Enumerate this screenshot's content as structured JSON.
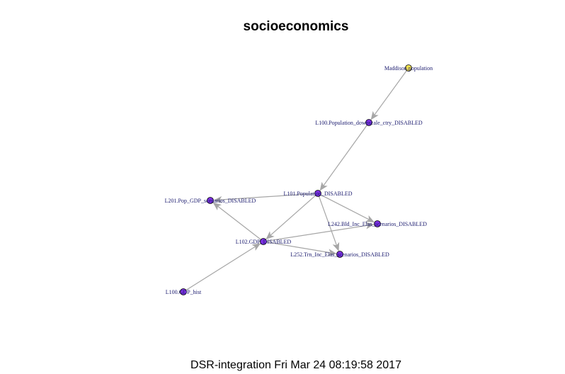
{
  "title": "socioeconomics",
  "footer": "DSR-integration Fri Mar 24 08:19:58 2017",
  "colors": {
    "edge": "#a6a6a6",
    "node_default": "#7b2fe0",
    "node_source": "#f0e050",
    "label": "#1a1a6e"
  },
  "nodes": [
    {
      "id": "maddison",
      "label": "Maddison.population",
      "color": "#f0e050"
    },
    {
      "id": "l100pop",
      "label": "L100.Population_downscale_ctry_DISABLED",
      "color": "#7b2fe0"
    },
    {
      "id": "l101pop",
      "label": "L101.Population_DISABLED",
      "color": "#7b2fe0"
    },
    {
      "id": "l201",
      "label": "L201.Pop_GDP_scenarios_DISABLED",
      "color": "#7b2fe0"
    },
    {
      "id": "l242",
      "label": "L242.Bld_Inc_Elas_scenarios_DISABLED",
      "color": "#7b2fe0"
    },
    {
      "id": "l102",
      "label": "L102.GDP_DISABLED",
      "color": "#7b2fe0"
    },
    {
      "id": "l252",
      "label": "L252.Trn_Inc_Elas_scenarios_DISABLED",
      "color": "#7b2fe0"
    },
    {
      "id": "l100gdp",
      "label": "L100.GDP_hist",
      "color": "#7b2fe0"
    }
  ],
  "edges": [
    {
      "from": "maddison",
      "to": "l100pop"
    },
    {
      "from": "l100pop",
      "to": "l101pop"
    },
    {
      "from": "l101pop",
      "to": "l201"
    },
    {
      "from": "l101pop",
      "to": "l242"
    },
    {
      "from": "l101pop",
      "to": "l102"
    },
    {
      "from": "l101pop",
      "to": "l252"
    },
    {
      "from": "l102",
      "to": "l201"
    },
    {
      "from": "l102",
      "to": "l242"
    },
    {
      "from": "l102",
      "to": "l252"
    },
    {
      "from": "l100gdp",
      "to": "l102"
    }
  ]
}
